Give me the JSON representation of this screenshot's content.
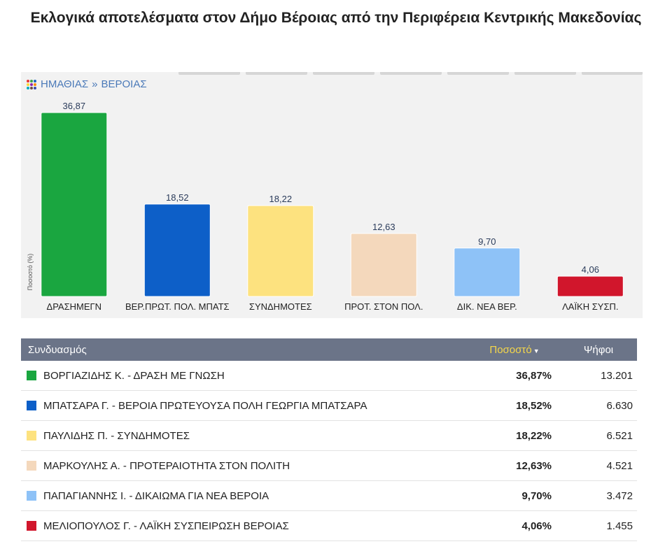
{
  "title": "Εκλογικά αποτελέσματα στον Δήμο Βέροιας από την Περιφέρεια Κεντρικής Μακεδονίας",
  "breadcrumb": {
    "region": "ΗΜΑΘΙΑΣ",
    "separator": "»",
    "municipality": "ΒΕΡΟΙΑΣ"
  },
  "colors": {
    "tab_colors": [
      "#e53935",
      "#43a047",
      "#1e63c6",
      "#fdd835",
      "#8e24aa",
      "#fb8c00",
      "#00acc1",
      "#6d4c41",
      "#3949ab"
    ]
  },
  "chart_data": {
    "type": "bar",
    "ylabel": "Ποσοστό (%)",
    "categories": [
      "ΔΡΑΣΗΜΕΓΝ",
      "ΒΕΡ.ΠΡΩΤ. ΠΟΛ. ΜΠΑΤΣ",
      "ΣΥΝΔΗΜΟΤΕΣ",
      "ΠΡΟΤ. ΣΤΟΝ ΠΟΛ.",
      "ΔΙΚ. ΝΕΑ ΒΕΡ.",
      "ΛΑΪΚΗ ΣΥΣΠ."
    ],
    "values": [
      36.87,
      18.52,
      18.22,
      12.63,
      9.7,
      4.06
    ],
    "value_labels": [
      "36,87",
      "18,52",
      "18,22",
      "12,63",
      "9,70",
      "4,06"
    ],
    "colors": [
      "#1aa640",
      "#0d5fc8",
      "#fde27f",
      "#f4d8bc",
      "#8ec2f7",
      "#d1162c"
    ],
    "ylim": [
      0,
      40
    ],
    "grid": false,
    "legend": "none"
  },
  "table": {
    "headers": {
      "coalition": "Συνδυασμός",
      "percent": "Ποσοστό",
      "votes": "Ψήφοι"
    },
    "sort_icon": "sort-down-icon",
    "rows": [
      {
        "name": "ΒΟΡΓΙΑΖΙΔΗΣ Κ. - ΔΡΑΣΗ ΜΕ ΓΝΩΣΗ",
        "percent": "36,87%",
        "votes": "13.201",
        "color": "#1aa640"
      },
      {
        "name": "ΜΠΑΤΣΑΡΑ Γ. - ΒΕΡΟΙΑ ΠΡΩΤΕΥΟΥΣΑ ΠΟΛΗ ΓΕΩΡΓΙΑ ΜΠΑΤΣΑΡΑ",
        "percent": "18,52%",
        "votes": "6.630",
        "color": "#0d5fc8"
      },
      {
        "name": "ΠΑΥΛΙΔΗΣ Π. - ΣΥΝΔΗΜΟΤΕΣ",
        "percent": "18,22%",
        "votes": "6.521",
        "color": "#fde27f"
      },
      {
        "name": "ΜΑΡΚΟΥΛΗΣ Α. - ΠΡΟΤΕΡΑΙΟΤΗΤΑ ΣΤΟΝ ΠΟΛΙΤΗ",
        "percent": "12,63%",
        "votes": "4.521",
        "color": "#f4d8bc"
      },
      {
        "name": "ΠΑΠΑΓΙΑΝΝΗΣ Ι. - ΔΙΚΑΙΩΜΑ ΓΙΑ ΝΕΑ ΒΕΡΟΙΑ",
        "percent": "9,70%",
        "votes": "3.472",
        "color": "#8ec2f7"
      },
      {
        "name": "ΜΕΛΙΟΠΟΥΛΟΣ Γ. - ΛΑΪΚΗ ΣΥΣΠΕΙΡΩΣΗ ΒΕΡΟΙΑΣ",
        "percent": "4,06%",
        "votes": "1.455",
        "color": "#d1162c"
      }
    ]
  }
}
